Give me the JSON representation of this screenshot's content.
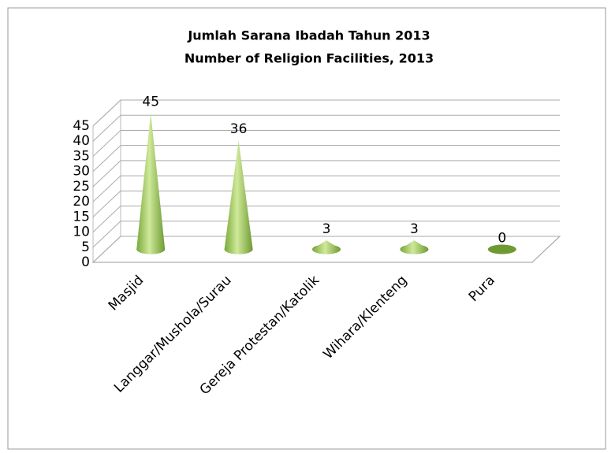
{
  "chart_data": {
    "type": "cone",
    "title": "Jumlah Sarana Ibadah Tahun 2013",
    "subtitle": "Number of Religion Facilities, 2013",
    "categories": [
      "Masjid",
      "Langgar/Mushola/Surau",
      "Gereja Protestan/Katolik",
      "Wihara/Klenteng",
      "Pura"
    ],
    "values": [
      45,
      36,
      3,
      3,
      0
    ],
    "color": "#8fc04a",
    "ylim": [
      0,
      45
    ],
    "yticks": [
      0,
      5,
      10,
      15,
      20,
      25,
      30,
      35,
      40,
      45
    ],
    "grid": true
  }
}
